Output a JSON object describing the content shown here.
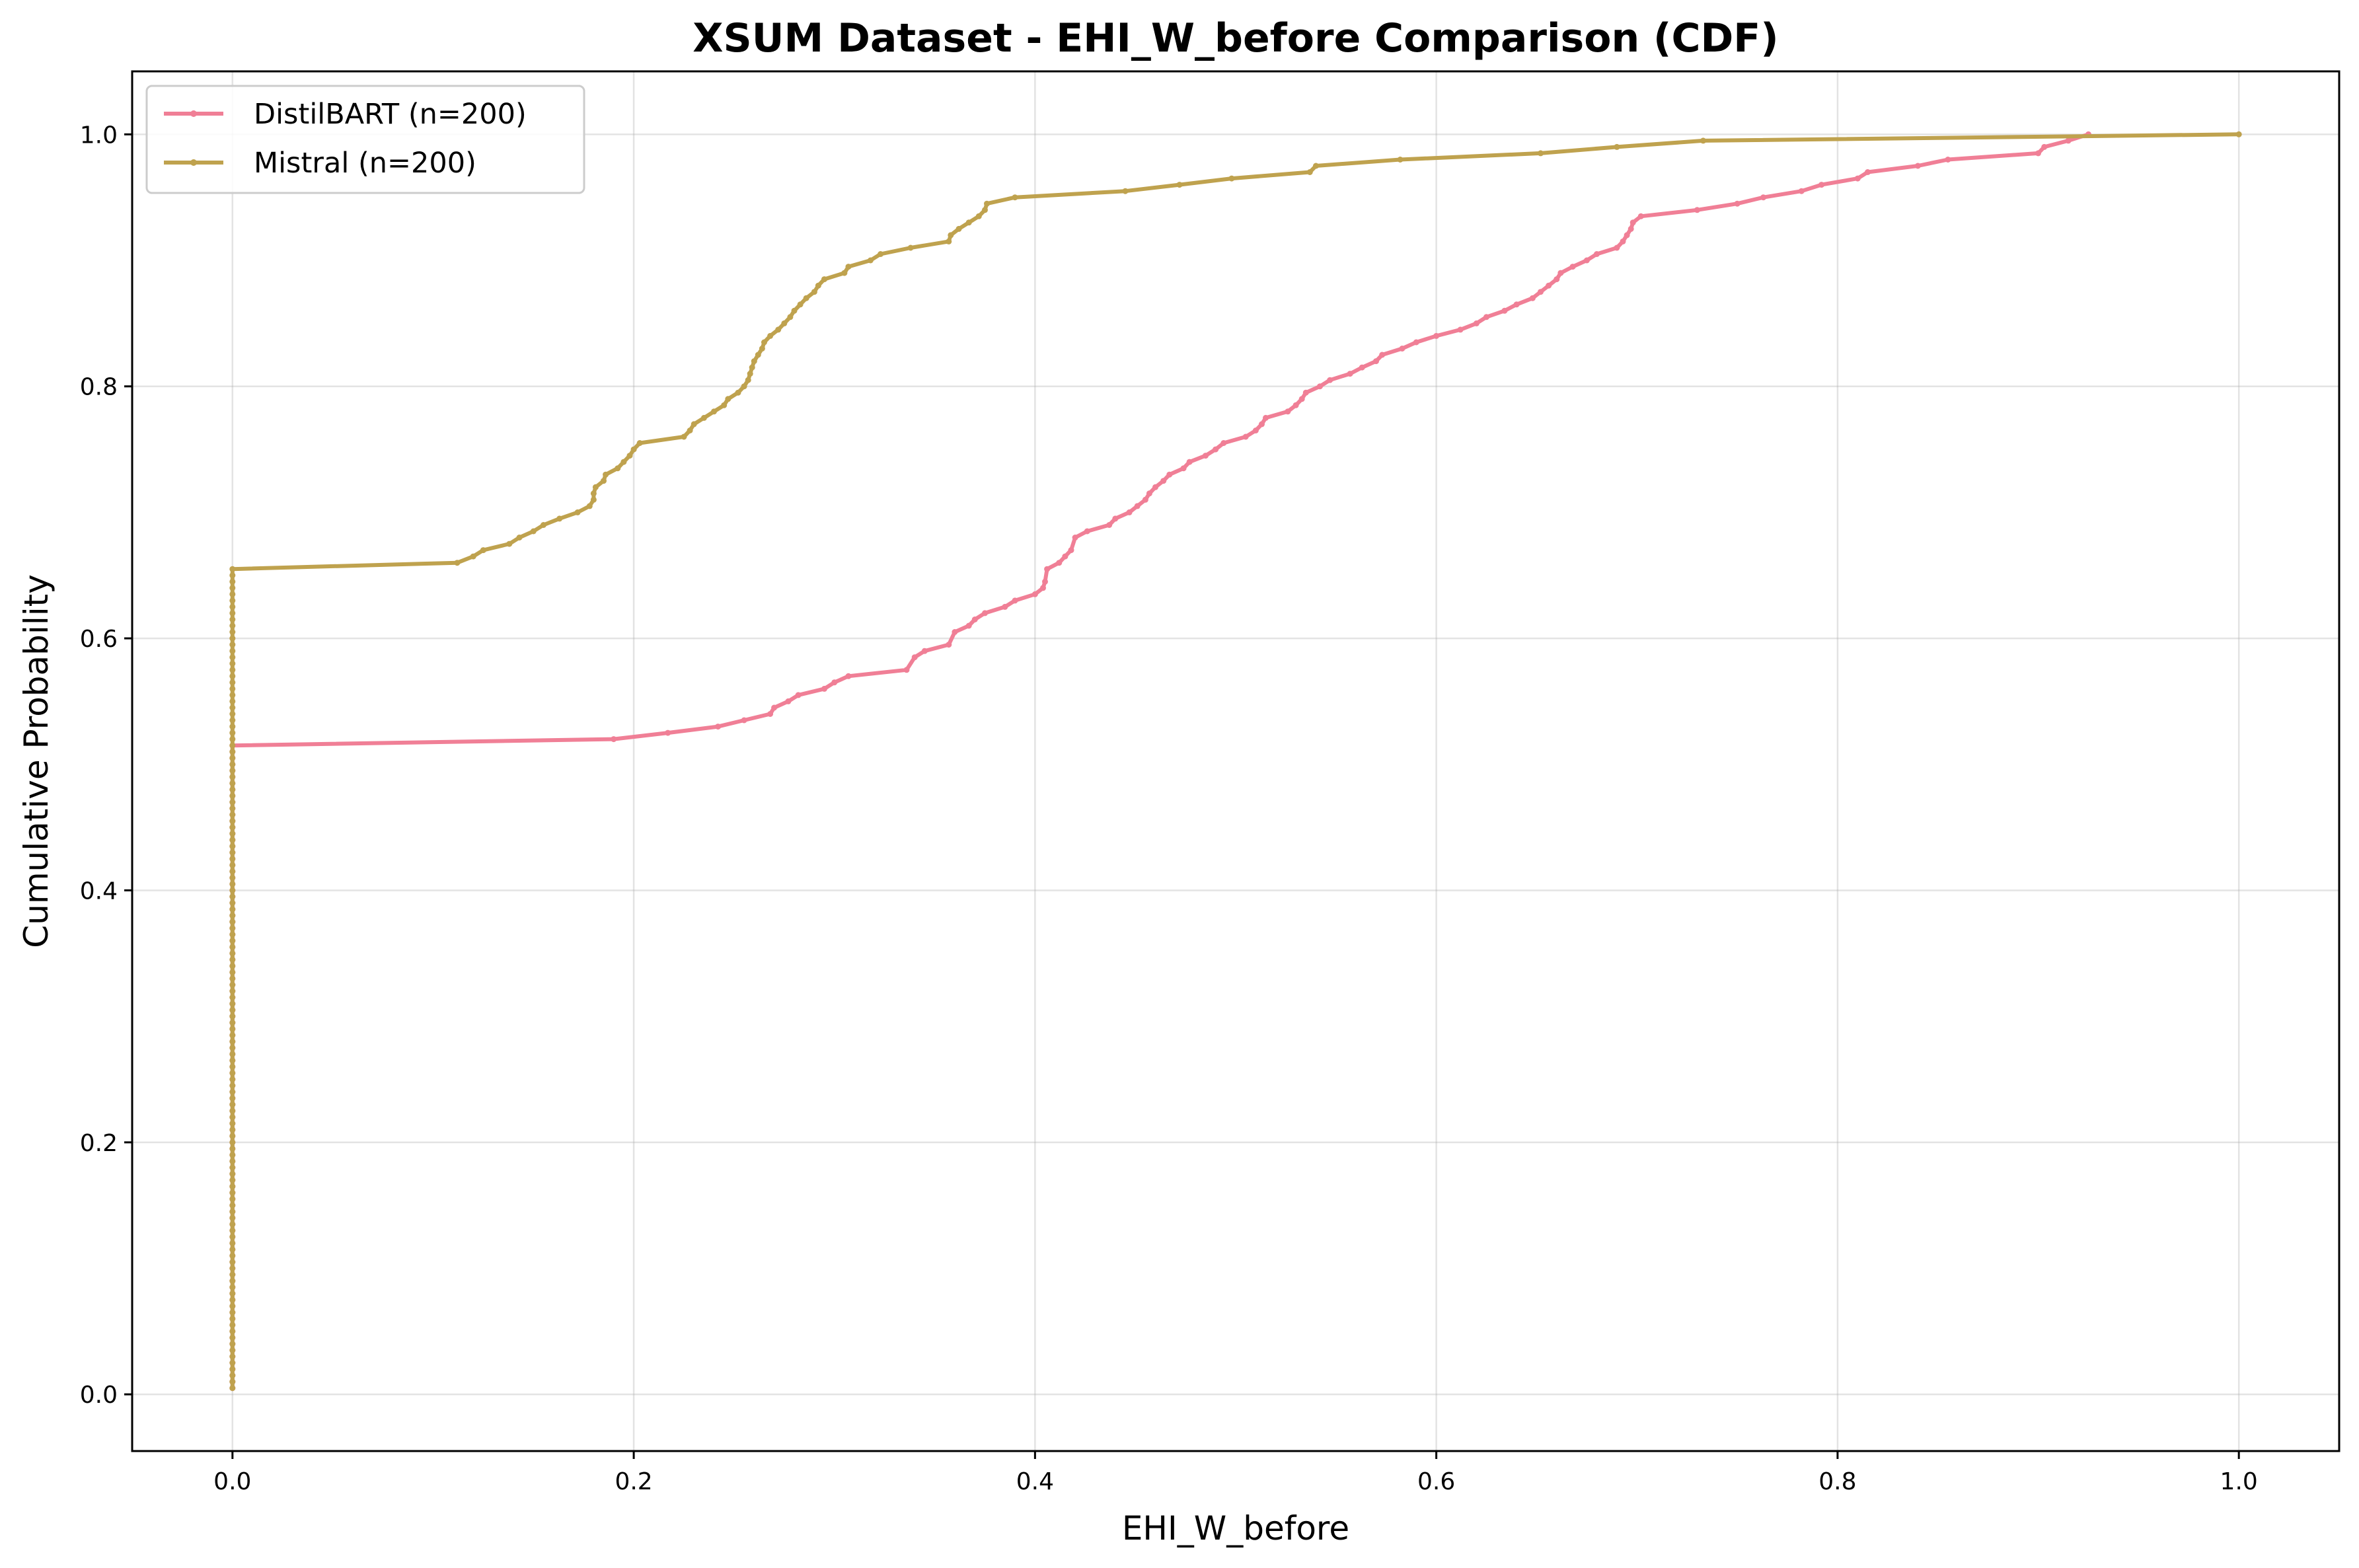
{
  "chart_data": {
    "type": "line",
    "title": "XSUM Dataset - EHI_W_before Comparison (CDF)",
    "xlabel": "EHI_W_before",
    "ylabel": "Cumulative Probability",
    "xlim": [
      -0.05,
      1.05
    ],
    "ylim": [
      -0.045,
      1.05
    ],
    "x_ticks": [
      0.0,
      0.2,
      0.4,
      0.6,
      0.8,
      1.0
    ],
    "x_tick_labels": [
      "0.0",
      "0.2",
      "0.4",
      "0.6",
      "0.8",
      "1.0"
    ],
    "y_ticks": [
      0.0,
      0.2,
      0.4,
      0.6,
      0.8,
      1.0
    ],
    "y_tick_labels": [
      "0.0",
      "0.2",
      "0.4",
      "0.6",
      "0.8",
      "1.0"
    ],
    "grid": true,
    "legend_position": "top-left",
    "series": [
      {
        "name": "DistilBART (n=200)",
        "color": "#f07f96",
        "zero_count": 103,
        "points": [
          [
            0.19,
            0.52
          ],
          [
            0.217,
            0.525
          ],
          [
            0.242,
            0.53
          ],
          [
            0.255,
            0.535
          ],
          [
            0.268,
            0.54
          ],
          [
            0.27,
            0.545
          ],
          [
            0.277,
            0.55
          ],
          [
            0.282,
            0.555
          ],
          [
            0.295,
            0.56
          ],
          [
            0.3,
            0.565
          ],
          [
            0.307,
            0.57
          ],
          [
            0.336,
            0.575
          ],
          [
            0.34,
            0.585
          ],
          [
            0.345,
            0.59
          ],
          [
            0.357,
            0.595
          ],
          [
            0.36,
            0.605
          ],
          [
            0.367,
            0.61
          ],
          [
            0.37,
            0.615
          ],
          [
            0.375,
            0.62
          ],
          [
            0.385,
            0.625
          ],
          [
            0.39,
            0.63
          ],
          [
            0.4,
            0.635
          ],
          [
            0.404,
            0.64
          ],
          [
            0.405,
            0.645
          ],
          [
            0.406,
            0.655
          ],
          [
            0.412,
            0.66
          ],
          [
            0.415,
            0.665
          ],
          [
            0.418,
            0.67
          ],
          [
            0.42,
            0.68
          ],
          [
            0.426,
            0.685
          ],
          [
            0.437,
            0.69
          ],
          [
            0.44,
            0.695
          ],
          [
            0.447,
            0.7
          ],
          [
            0.451,
            0.705
          ],
          [
            0.455,
            0.71
          ],
          [
            0.457,
            0.715
          ],
          [
            0.46,
            0.72
          ],
          [
            0.464,
            0.725
          ],
          [
            0.467,
            0.73
          ],
          [
            0.474,
            0.735
          ],
          [
            0.477,
            0.74
          ],
          [
            0.485,
            0.745
          ],
          [
            0.49,
            0.75
          ],
          [
            0.494,
            0.755
          ],
          [
            0.505,
            0.76
          ],
          [
            0.51,
            0.765
          ],
          [
            0.513,
            0.77
          ],
          [
            0.515,
            0.775
          ],
          [
            0.526,
            0.78
          ],
          [
            0.53,
            0.785
          ],
          [
            0.533,
            0.79
          ],
          [
            0.535,
            0.795
          ],
          [
            0.542,
            0.8
          ],
          [
            0.547,
            0.805
          ],
          [
            0.557,
            0.81
          ],
          [
            0.563,
            0.815
          ],
          [
            0.57,
            0.82
          ],
          [
            0.573,
            0.825
          ],
          [
            0.583,
            0.83
          ],
          [
            0.59,
            0.835
          ],
          [
            0.6,
            0.84
          ],
          [
            0.612,
            0.845
          ],
          [
            0.62,
            0.85
          ],
          [
            0.625,
            0.855
          ],
          [
            0.634,
            0.86
          ],
          [
            0.64,
            0.865
          ],
          [
            0.648,
            0.87
          ],
          [
            0.652,
            0.875
          ],
          [
            0.656,
            0.88
          ],
          [
            0.66,
            0.885
          ],
          [
            0.662,
            0.89
          ],
          [
            0.668,
            0.895
          ],
          [
            0.675,
            0.9
          ],
          [
            0.68,
            0.905
          ],
          [
            0.69,
            0.91
          ],
          [
            0.693,
            0.915
          ],
          [
            0.695,
            0.92
          ],
          [
            0.697,
            0.925
          ],
          [
            0.698,
            0.93
          ],
          [
            0.702,
            0.935
          ],
          [
            0.73,
            0.94
          ],
          [
            0.75,
            0.945
          ],
          [
            0.763,
            0.95
          ],
          [
            0.782,
            0.955
          ],
          [
            0.792,
            0.96
          ],
          [
            0.81,
            0.965
          ],
          [
            0.815,
            0.97
          ],
          [
            0.84,
            0.975
          ],
          [
            0.855,
            0.98
          ],
          [
            0.9,
            0.985
          ],
          [
            0.903,
            0.99
          ],
          [
            0.915,
            0.995
          ],
          [
            0.925,
            1.0
          ]
        ]
      },
      {
        "name": "Mistral (n=200)",
        "color": "#bfa24e",
        "zero_count": 131,
        "points": [
          [
            0.112,
            0.66
          ],
          [
            0.12,
            0.665
          ],
          [
            0.125,
            0.67
          ],
          [
            0.138,
            0.675
          ],
          [
            0.143,
            0.68
          ],
          [
            0.15,
            0.685
          ],
          [
            0.155,
            0.69
          ],
          [
            0.163,
            0.695
          ],
          [
            0.172,
            0.7
          ],
          [
            0.178,
            0.705
          ],
          [
            0.18,
            0.71
          ],
          [
            0.18,
            0.715
          ],
          [
            0.181,
            0.72
          ],
          [
            0.185,
            0.725
          ],
          [
            0.186,
            0.73
          ],
          [
            0.192,
            0.735
          ],
          [
            0.195,
            0.74
          ],
          [
            0.198,
            0.745
          ],
          [
            0.2,
            0.75
          ],
          [
            0.203,
            0.755
          ],
          [
            0.225,
            0.76
          ],
          [
            0.228,
            0.765
          ],
          [
            0.23,
            0.77
          ],
          [
            0.235,
            0.775
          ],
          [
            0.24,
            0.78
          ],
          [
            0.245,
            0.785
          ],
          [
            0.247,
            0.79
          ],
          [
            0.252,
            0.795
          ],
          [
            0.255,
            0.8
          ],
          [
            0.257,
            0.805
          ],
          [
            0.258,
            0.81
          ],
          [
            0.259,
            0.815
          ],
          [
            0.26,
            0.82
          ],
          [
            0.262,
            0.825
          ],
          [
            0.264,
            0.83
          ],
          [
            0.265,
            0.835
          ],
          [
            0.268,
            0.84
          ],
          [
            0.272,
            0.845
          ],
          [
            0.275,
            0.85
          ],
          [
            0.278,
            0.855
          ],
          [
            0.28,
            0.86
          ],
          [
            0.283,
            0.865
          ],
          [
            0.286,
            0.87
          ],
          [
            0.29,
            0.875
          ],
          [
            0.292,
            0.88
          ],
          [
            0.295,
            0.885
          ],
          [
            0.305,
            0.89
          ],
          [
            0.307,
            0.895
          ],
          [
            0.318,
            0.9
          ],
          [
            0.323,
            0.905
          ],
          [
            0.338,
            0.91
          ],
          [
            0.357,
            0.915
          ],
          [
            0.358,
            0.92
          ],
          [
            0.362,
            0.925
          ],
          [
            0.367,
            0.93
          ],
          [
            0.372,
            0.935
          ],
          [
            0.375,
            0.94
          ],
          [
            0.376,
            0.945
          ],
          [
            0.39,
            0.95
          ],
          [
            0.445,
            0.955
          ],
          [
            0.472,
            0.96
          ],
          [
            0.498,
            0.965
          ],
          [
            0.537,
            0.97
          ],
          [
            0.54,
            0.975
          ],
          [
            0.582,
            0.98
          ],
          [
            0.652,
            0.985
          ],
          [
            0.69,
            0.99
          ],
          [
            0.733,
            0.995
          ],
          [
            1.0,
            1.0
          ]
        ]
      }
    ]
  }
}
